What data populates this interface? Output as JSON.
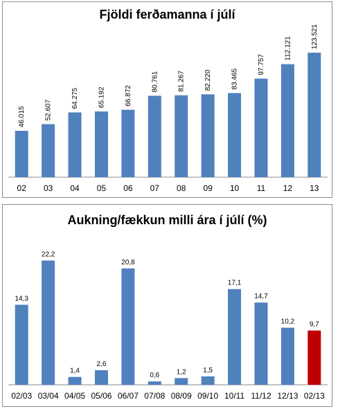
{
  "chart_data": [
    {
      "type": "bar",
      "title": "Fjöldi ferðamanna í júlí",
      "xlabel": "",
      "ylabel": "",
      "categories": [
        "02",
        "03",
        "04",
        "05",
        "06",
        "07",
        "08",
        "09",
        "10",
        "11",
        "12",
        "13"
      ],
      "values": [
        46015,
        52607,
        64275,
        65192,
        66872,
        80761,
        81267,
        82220,
        83465,
        97757,
        112121,
        123521
      ],
      "value_labels": [
        "46.015",
        "52.607",
        "64.275",
        "65.192",
        "66.872",
        "80.761",
        "81.267",
        "82.220",
        "83.465",
        "97.757",
        "112.121",
        "123.521"
      ],
      "ylim": [
        0,
        125000
      ],
      "grid": false,
      "bar_color": "#4f81bd",
      "label_orientation": "vertical"
    },
    {
      "type": "bar",
      "title": "Aukning/fækkun milli ára í júlí (%)",
      "xlabel": "",
      "ylabel": "",
      "categories": [
        "02/03",
        "03/04",
        "04/05",
        "05/06",
        "06/07",
        "07/08",
        "08/09",
        "09/10",
        "10/11",
        "11/12",
        "12/13",
        "02/13"
      ],
      "values": [
        14.3,
        22.2,
        1.4,
        2.6,
        20.8,
        0.6,
        1.2,
        1.5,
        17.1,
        14.7,
        10.2,
        9.7
      ],
      "value_labels": [
        "14,3",
        "22,2",
        "1,4",
        "2,6",
        "20,8",
        "0,6",
        "1,2",
        "1,5",
        "17,1",
        "14,7",
        "10,2",
        "9,7"
      ],
      "ylim": [
        0,
        23.5
      ],
      "grid": false,
      "bar_color": "#4f81bd",
      "highlight_color": "#c00000",
      "highlight_index": 11,
      "label_orientation": "horizontal"
    }
  ]
}
